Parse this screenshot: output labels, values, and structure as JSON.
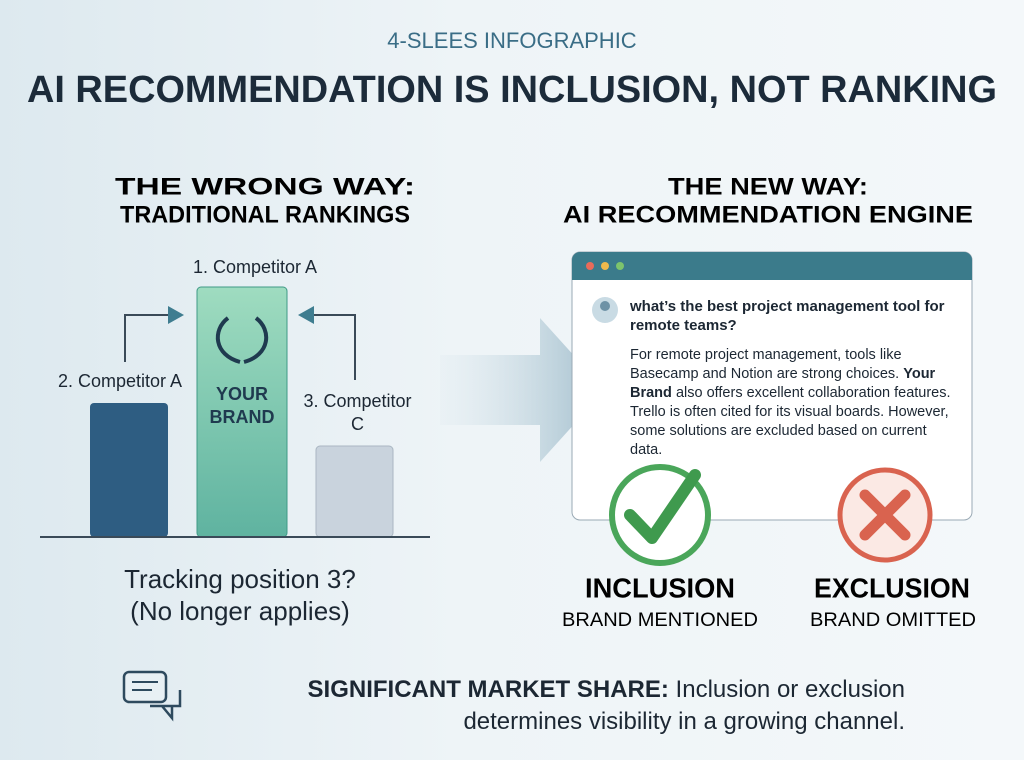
{
  "header": {
    "kicker": "4-SLEES INFOGRAPHIC",
    "title": "AI RECOMMENDATION IS INCLUSION, NOT RANKING"
  },
  "left": {
    "heading": [
      "THE WRONG WAY:",
      "TRADITIONAL RANKINGS"
    ],
    "ranks": [
      "1. Competitor A",
      "2. Competitor A",
      "3. Competitor C"
    ],
    "brand": [
      "YOUR",
      "BRAND"
    ],
    "question": "Tracking position 3?",
    "note": "(No longer applies)"
  },
  "right": {
    "heading": [
      "THE NEW WAY:",
      "AI RECOMMENDATION ENGINE"
    ],
    "query": "what’s the best project management tool for remote teams?",
    "answer": [
      "For remote project management, tools like Basecamp and Notion are strong choices.",
      "Your Brand",
      "also offers excellent collaboration features. Trello is often cited for its visual boards. However, some solutions are excluded based on current data."
    ],
    "outcomes": [
      {
        "title": "INCLUSION",
        "caption": "BRAND MENTIONED"
      },
      {
        "title": "EXCLUSION",
        "caption": "BRAND OMITTED"
      }
    ]
  },
  "footer": {
    "lead": "SIGNIFICANT MARKET SHARE:",
    "text": "Inclusion or exclusion determines visibility in a growing channel."
  }
}
